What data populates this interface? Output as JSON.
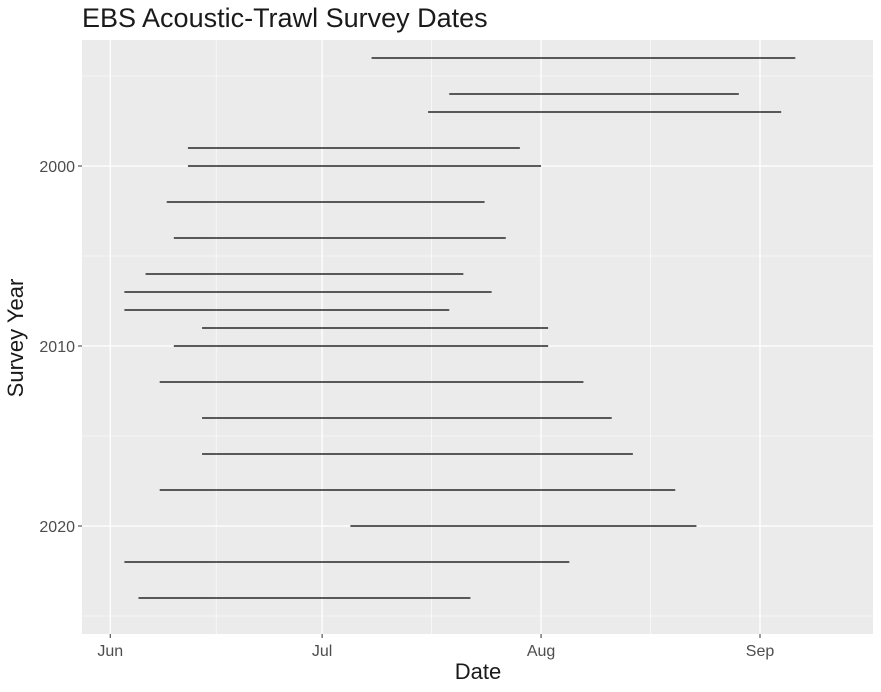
{
  "chart_data": {
    "type": "segment",
    "title": "EBS Acoustic-Trawl Survey Dates",
    "xlabel": "Date",
    "ylabel": "Survey Year",
    "x_ticks": [
      "Jun",
      "Jul",
      "Aug",
      "Sep"
    ],
    "y_ticks": [
      2000,
      2010,
      2020
    ],
    "ylim": [
      2026,
      1993
    ],
    "xlim_days_of_year": [
      148,
      260
    ],
    "grid": true,
    "legend": "none",
    "colors": {
      "panel": "#ebebeb",
      "grid": "#ffffff",
      "segment": "#000000",
      "tick": "#333333"
    },
    "surveys": [
      {
        "year": 1994,
        "start": "07-08",
        "end": "09-06"
      },
      {
        "year": 1996,
        "start": "07-19",
        "end": "08-29"
      },
      {
        "year": 1997,
        "start": "07-16",
        "end": "09-04"
      },
      {
        "year": 1999,
        "start": "06-12",
        "end": "07-29"
      },
      {
        "year": 2000,
        "start": "06-12",
        "end": "08-01"
      },
      {
        "year": 2002,
        "start": "06-09",
        "end": "07-24"
      },
      {
        "year": 2004,
        "start": "06-10",
        "end": "07-27"
      },
      {
        "year": 2006,
        "start": "06-06",
        "end": "07-21"
      },
      {
        "year": 2007,
        "start": "06-03",
        "end": "07-25"
      },
      {
        "year": 2008,
        "start": "06-03",
        "end": "07-19"
      },
      {
        "year": 2009,
        "start": "06-14",
        "end": "08-02"
      },
      {
        "year": 2010,
        "start": "06-10",
        "end": "08-02"
      },
      {
        "year": 2012,
        "start": "06-08",
        "end": "08-07"
      },
      {
        "year": 2014,
        "start": "06-14",
        "end": "08-11"
      },
      {
        "year": 2016,
        "start": "06-14",
        "end": "08-14"
      },
      {
        "year": 2018,
        "start": "06-08",
        "end": "08-20"
      },
      {
        "year": 2020,
        "start": "07-05",
        "end": "08-23"
      },
      {
        "year": 2022,
        "start": "06-03",
        "end": "08-05"
      },
      {
        "year": 2024,
        "start": "06-05",
        "end": "07-22"
      }
    ]
  }
}
